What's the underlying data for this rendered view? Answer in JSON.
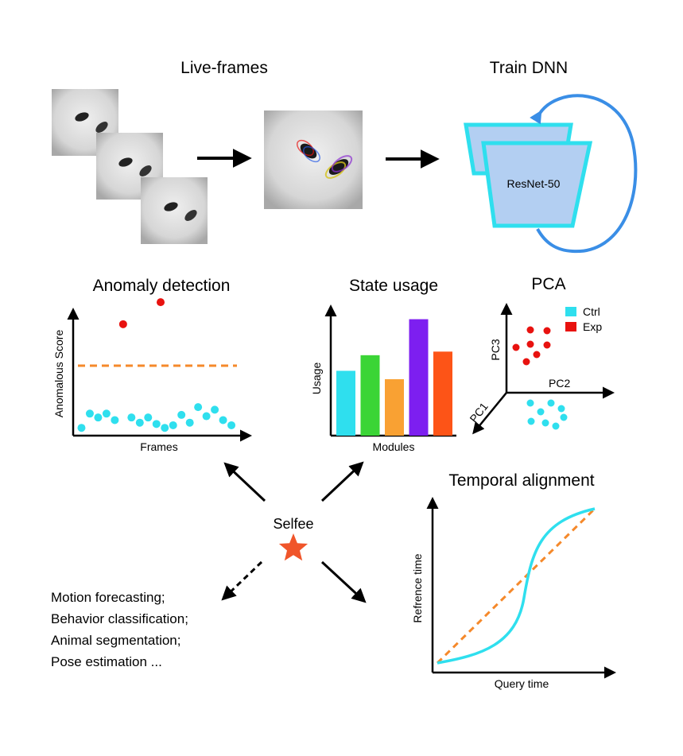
{
  "sections": {
    "live_frames": "Live-frames",
    "train_dnn": "Train DNN",
    "network": "ResNet-50",
    "anomaly": "Anomaly detection",
    "state_usage": "State usage",
    "pca": "PCA",
    "temporal": "Temporal alignment",
    "center": "Selfee"
  },
  "colors": {
    "cyan": "#2fdfee",
    "red": "#e8120f",
    "orange": "#f5892b",
    "blue_arrow": "#3a8ee6",
    "dnn_fill": "#b3cff2",
    "star": "#f0552a"
  },
  "icons": [
    "fly-video-frame",
    "fused-rgb-frame",
    "cycle-arrow",
    "star-icon"
  ],
  "tasks": [
    "Motion forecasting;",
    "Behavior classification;",
    "Animal segmentation;",
    "Pose estimation ..."
  ],
  "chart_data": [
    {
      "type": "scatter",
      "title": "Anomaly detection",
      "xlabel": "Frames",
      "ylabel": "Anomalous Score",
      "threshold": 5.4,
      "ylim": [
        0,
        10
      ],
      "xlim": [
        0,
        21
      ],
      "series": [
        {
          "color": "#2fdfee",
          "points": [
            [
              1,
              0.6
            ],
            [
              2,
              1.7
            ],
            [
              3,
              1.4
            ],
            [
              4,
              1.7
            ],
            [
              5,
              1.2
            ],
            [
              7,
              1.4
            ],
            [
              8,
              1.0
            ],
            [
              9,
              1.4
            ],
            [
              10,
              0.9
            ],
            [
              11,
              0.6
            ],
            [
              12,
              0.8
            ],
            [
              13,
              1.6
            ],
            [
              14,
              1.0
            ],
            [
              15,
              2.2
            ],
            [
              16,
              1.5
            ],
            [
              17,
              2.0
            ],
            [
              18,
              1.2
            ],
            [
              19,
              0.8
            ]
          ]
        },
        {
          "color": "#e8120f",
          "points": [
            [
              6,
              8.6
            ],
            [
              10.5,
              10.3
            ]
          ]
        }
      ]
    },
    {
      "type": "bar",
      "title": "State usage",
      "xlabel": "Modules",
      "ylabel": "Usage",
      "ylim": [
        0,
        10
      ],
      "values": [
        5.4,
        6.7,
        4.7,
        9.7,
        7.0
      ],
      "colors": [
        "#2fdfee",
        "#3bd536",
        "#f9a133",
        "#7d1ff0",
        "#fd5417"
      ]
    },
    {
      "type": "scatter",
      "title": "PCA",
      "axes": [
        "PC1",
        "PC2",
        "PC3"
      ],
      "legend": [
        {
          "label": "Ctrl",
          "color": "#2fdfee"
        },
        {
          "label": "Exp",
          "color": "#e8120f"
        }
      ]
    },
    {
      "type": "line",
      "title": "Temporal alignment",
      "xlabel": "Query time",
      "ylabel": "Refrence time",
      "series": [
        {
          "color": "#2fdfee",
          "style": "solid",
          "points": [
            [
              0,
              0
            ],
            [
              0.3,
              0.1
            ],
            [
              0.5,
              0.4
            ],
            [
              0.7,
              0.9
            ],
            [
              1,
              1
            ]
          ]
        },
        {
          "color": "#f5892b",
          "style": "dashed",
          "points": [
            [
              0,
              0
            ],
            [
              1,
              1
            ]
          ]
        }
      ]
    }
  ]
}
